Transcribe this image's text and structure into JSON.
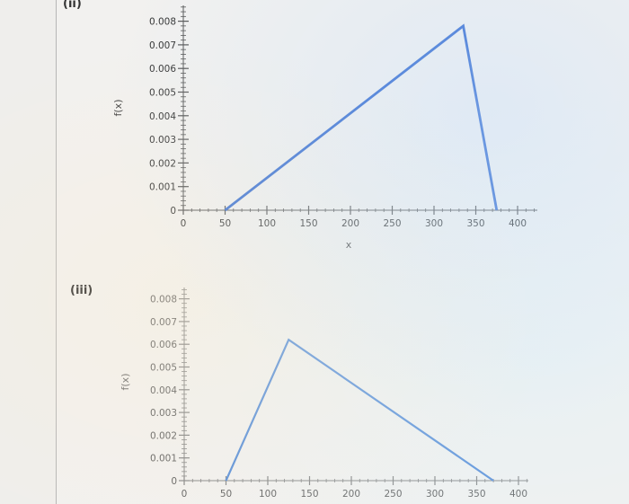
{
  "parts": [
    {
      "label": "(ii)"
    },
    {
      "label": "(iii)"
    }
  ],
  "chart_data": [
    {
      "type": "line",
      "xlabel": "x",
      "ylabel": "f(x)",
      "xlim": [
        0,
        420
      ],
      "ylim": [
        0,
        0.0088
      ],
      "x_ticks": [
        "0",
        "50",
        "100",
        "150",
        "200",
        "250",
        "300",
        "350",
        "400"
      ],
      "y_ticks": [
        "0",
        "0.001",
        "0.002",
        "0.003",
        "0.004",
        "0.005",
        "0.006",
        "0.007",
        "0.008"
      ],
      "series": [
        {
          "x": [
            50,
            335,
            375
          ],
          "y": [
            0,
            0.0078,
            0
          ],
          "color": "#3a6fd0"
        }
      ]
    },
    {
      "type": "line",
      "xlabel": "",
      "ylabel": "f(x)",
      "xlim": [
        0,
        420
      ],
      "ylim": [
        0,
        0.0088
      ],
      "x_ticks": [
        "0",
        "50",
        "100",
        "150",
        "200",
        "250",
        "300",
        "350",
        "400"
      ],
      "y_ticks": [
        "0",
        "0.001",
        "0.002",
        "0.003",
        "0.004",
        "0.005",
        "0.006",
        "0.007",
        "0.008"
      ],
      "series": [
        {
          "x": [
            50,
            125,
            370
          ],
          "y": [
            0,
            0.0062,
            0
          ],
          "color": "#5a8fd8"
        }
      ]
    }
  ]
}
